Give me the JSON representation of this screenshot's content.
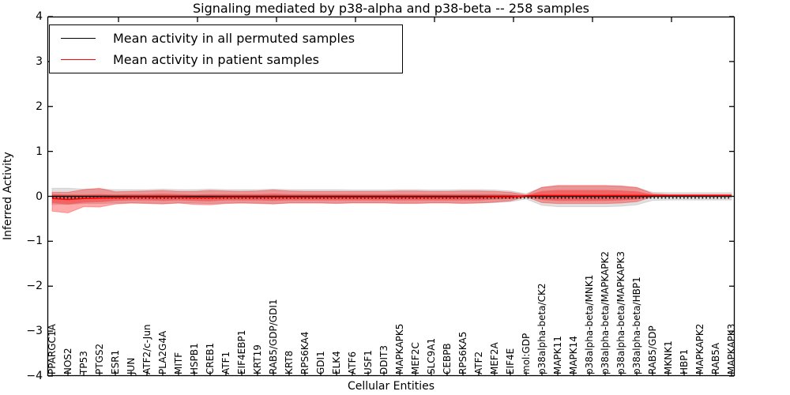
{
  "legend": {
    "entries": [
      {
        "label": "Mean activity in all permuted samples",
        "color": "#000000"
      },
      {
        "label": "Mean activity in patient samples",
        "color": "#ff0000"
      }
    ]
  },
  "axes": {
    "yticks": [
      "4",
      "3",
      "2",
      "1",
      "0",
      "−1",
      "−2",
      "−3",
      "−4"
    ]
  },
  "chart_data": {
    "type": "line",
    "title": "Signaling mediated by p38-alpha and p38-beta -- 258 samples",
    "xlabel": "Cellular Entities",
    "ylabel": "Inferred Activity",
    "ylim": [
      -4,
      4
    ],
    "grid": false,
    "legend_position": "upper left",
    "categories": [
      "PPARGC1A",
      "NOS2",
      "TP53",
      "PTGS2",
      "ESR1",
      "JUN",
      "ATF2/c-Jun",
      "PLA2G4A",
      "MITF",
      "HSPB1",
      "CREB1",
      "ATF1",
      "EIF4EBP1",
      "KRT19",
      "RAB5/GDP/GDI1",
      "KRT8",
      "RPS6KA4",
      "GDI1",
      "ELK4",
      "ATF6",
      "USF1",
      "DDIT3",
      "MAPKAPK5",
      "MEF2C",
      "SLC9A1",
      "CEBPB",
      "RPS6KA5",
      "ATF2",
      "MEF2A",
      "EIF4E",
      "mol:GDP",
      "p38alpha-beta/CK2",
      "MAPK11",
      "MAPK14",
      "p38alpha-beta/MNK1",
      "p38alpha-beta/MAPKAPK2",
      "p38alpha-beta/MAPKAPK3",
      "p38alpha-beta/HBP1",
      "RAB5/GDP",
      "MKNK1",
      "HBP1",
      "MAPKAPK2",
      "RAB5A",
      "MAPKAPK3"
    ],
    "series": [
      {
        "name": "Mean activity in all permuted samples",
        "color": "#000000",
        "style": "solid",
        "values": [
          0,
          0,
          0,
          0,
          0,
          0,
          0,
          0,
          0,
          0,
          0,
          0,
          0,
          0,
          0,
          0,
          0,
          0,
          0,
          0,
          0,
          0,
          0,
          0,
          0,
          0,
          0,
          0,
          0,
          0,
          0,
          0,
          0,
          0,
          0,
          0,
          0,
          0,
          0,
          0,
          0,
          0,
          0,
          0
        ]
      },
      {
        "name": "Mean activity in patient samples",
        "color": "#ff0000",
        "style": "solid",
        "values": [
          -0.05,
          -0.07,
          -0.05,
          -0.04,
          -0.03,
          -0.02,
          -0.02,
          -0.02,
          -0.02,
          -0.03,
          -0.03,
          -0.02,
          -0.02,
          -0.02,
          -0.02,
          -0.02,
          -0.02,
          -0.02,
          -0.02,
          -0.02,
          -0.02,
          -0.02,
          -0.02,
          -0.02,
          -0.02,
          -0.02,
          -0.02,
          -0.02,
          -0.01,
          -0.01,
          0.01,
          0.02,
          0.02,
          0.02,
          0.02,
          0.02,
          0.02,
          0.02,
          0.02,
          0.02,
          0.02,
          0.02,
          0.02,
          0.02
        ]
      }
    ],
    "bands": [
      {
        "name": "permuted-samples-spread",
        "color": "#999999",
        "opacity": 0.3,
        "center": "permuted",
        "edge": true,
        "upper": [
          0.18,
          0.18,
          0.16,
          0.16,
          0.15,
          0.15,
          0.15,
          0.16,
          0.15,
          0.15,
          0.16,
          0.15,
          0.15,
          0.15,
          0.16,
          0.15,
          0.15,
          0.15,
          0.15,
          0.14,
          0.14,
          0.14,
          0.15,
          0.15,
          0.14,
          0.14,
          0.15,
          0.15,
          0.14,
          0.12,
          0.06,
          0.2,
          0.23,
          0.23,
          0.23,
          0.23,
          0.22,
          0.19,
          0.09,
          0.08,
          0.08,
          0.08,
          0.08,
          0.08
        ],
        "lower": [
          0.18,
          0.18,
          0.16,
          0.16,
          0.15,
          0.15,
          0.15,
          0.16,
          0.15,
          0.15,
          0.16,
          0.15,
          0.15,
          0.15,
          0.16,
          0.15,
          0.15,
          0.15,
          0.15,
          0.14,
          0.14,
          0.14,
          0.15,
          0.15,
          0.14,
          0.14,
          0.15,
          0.15,
          0.14,
          0.12,
          0.06,
          0.2,
          0.23,
          0.23,
          0.23,
          0.23,
          0.22,
          0.19,
          0.09,
          0.08,
          0.08,
          0.08,
          0.08,
          0.08
        ]
      },
      {
        "name": "patient-samples-spread-outer",
        "color": "#ff0000",
        "opacity": 0.33,
        "center": "patient",
        "edge": true,
        "upper": [
          0.14,
          0.16,
          0.2,
          0.22,
          0.13,
          0.13,
          0.14,
          0.15,
          0.13,
          0.14,
          0.16,
          0.14,
          0.13,
          0.14,
          0.16,
          0.14,
          0.13,
          0.13,
          0.13,
          0.13,
          0.13,
          0.13,
          0.14,
          0.14,
          0.13,
          0.13,
          0.14,
          0.14,
          0.12,
          0.1,
          0.02,
          0.18,
          0.22,
          0.22,
          0.22,
          0.22,
          0.21,
          0.18,
          0.04,
          0.02,
          0.02,
          0.02,
          0.02,
          0.02
        ],
        "lower": [
          0.28,
          0.3,
          0.18,
          0.2,
          0.14,
          0.13,
          0.14,
          0.15,
          0.13,
          0.15,
          0.16,
          0.14,
          0.13,
          0.14,
          0.15,
          0.13,
          0.13,
          0.13,
          0.14,
          0.13,
          0.13,
          0.13,
          0.14,
          0.14,
          0.13,
          0.13,
          0.14,
          0.13,
          0.12,
          0.09,
          0.02,
          0.16,
          0.18,
          0.18,
          0.18,
          0.18,
          0.17,
          0.14,
          0.03,
          0.02,
          0.02,
          0.02,
          0.02,
          0.02
        ]
      },
      {
        "name": "patient-samples-spread-inner",
        "color": "#ff0000",
        "opacity": 0.33,
        "center": "patient",
        "edge": false,
        "upper": [
          0.1,
          0.11,
          0.09,
          0.09,
          0.07,
          0.07,
          0.07,
          0.08,
          0.07,
          0.07,
          0.08,
          0.07,
          0.07,
          0.07,
          0.08,
          0.07,
          0.07,
          0.07,
          0.07,
          0.07,
          0.07,
          0.07,
          0.07,
          0.07,
          0.07,
          0.07,
          0.07,
          0.07,
          0.06,
          0.05,
          0.01,
          0.1,
          0.12,
          0.12,
          0.12,
          0.12,
          0.11,
          0.09,
          0.02,
          0.01,
          0.01,
          0.01,
          0.01,
          0.01
        ],
        "lower": [
          0.1,
          0.11,
          0.09,
          0.09,
          0.07,
          0.07,
          0.07,
          0.08,
          0.07,
          0.07,
          0.08,
          0.07,
          0.07,
          0.07,
          0.08,
          0.07,
          0.07,
          0.07,
          0.07,
          0.07,
          0.07,
          0.07,
          0.07,
          0.07,
          0.07,
          0.07,
          0.07,
          0.07,
          0.06,
          0.05,
          0.01,
          0.1,
          0.12,
          0.12,
          0.12,
          0.12,
          0.11,
          0.09,
          0.02,
          0.01,
          0.01,
          0.01,
          0.01,
          0.01
        ]
      }
    ],
    "zero_line": {
      "style": "dotted",
      "color": "#000000",
      "y": 0
    }
  }
}
